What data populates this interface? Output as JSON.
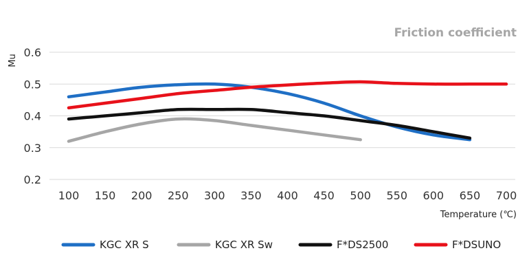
{
  "chart_data": {
    "type": "line",
    "title": "Friction coefficient",
    "xlabel": "Temperature (℃)",
    "ylabel": "Mu",
    "xlim": [
      100,
      700
    ],
    "ylim": [
      0.2,
      0.6
    ],
    "grid": "horizontal",
    "legend": "bottom",
    "x_ticks": [
      "100",
      "150",
      "200",
      "250",
      "300",
      "350",
      "400",
      "450",
      "500",
      "550",
      "600",
      "650",
      "700"
    ],
    "y_ticks": [
      "0.2",
      "0.3",
      "0.4",
      "0.5",
      "0.6"
    ],
    "series": [
      {
        "name": "KGC XR S",
        "color": "#1f6fc5",
        "x": [
          100,
          150,
          200,
          250,
          300,
          350,
          400,
          450,
          500,
          550,
          600,
          650
        ],
        "y": [
          0.46,
          0.475,
          0.49,
          0.498,
          0.5,
          0.49,
          0.47,
          0.44,
          0.4,
          0.365,
          0.34,
          0.325
        ]
      },
      {
        "name": "KGC XR Sw",
        "color": "#a6a6a6",
        "x": [
          100,
          150,
          200,
          250,
          300,
          350,
          400,
          450,
          500
        ],
        "y": [
          0.32,
          0.35,
          0.375,
          0.39,
          0.385,
          0.37,
          0.355,
          0.34,
          0.325
        ]
      },
      {
        "name": "F*DS2500",
        "color": "#111111",
        "x": [
          100,
          150,
          200,
          250,
          300,
          350,
          400,
          450,
          500,
          550,
          600,
          650
        ],
        "y": [
          0.39,
          0.4,
          0.41,
          0.42,
          0.42,
          0.42,
          0.41,
          0.4,
          0.385,
          0.37,
          0.35,
          0.33
        ]
      },
      {
        "name": "F*DSUNO",
        "color": "#e8111a",
        "x": [
          100,
          150,
          200,
          250,
          300,
          350,
          400,
          450,
          500,
          550,
          600,
          650,
          700
        ],
        "y": [
          0.425,
          0.44,
          0.455,
          0.47,
          0.48,
          0.49,
          0.497,
          0.503,
          0.507,
          0.502,
          0.5,
          0.5,
          0.5
        ]
      }
    ]
  }
}
